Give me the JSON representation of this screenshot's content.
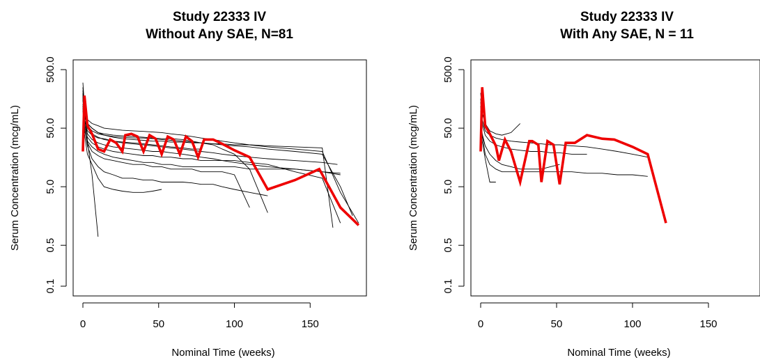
{
  "chart_data": [
    {
      "type": "line",
      "title_line1": "Study 22333 IV",
      "title_line2": "Without Any SAE, N=81",
      "xlabel": "Nominal Time (weeks)",
      "ylabel": "Serum Concentration (mcg/mL)",
      "xlim": [
        0,
        183
      ],
      "ylim": [
        0.1,
        500
      ],
      "yscale": "log",
      "x_ticks": [
        0,
        50,
        100,
        150
      ],
      "x_tick_labels": [
        "0",
        "50",
        "100",
        "150"
      ],
      "y_ticks": [
        0.1,
        0.5,
        5,
        50,
        500
      ],
      "y_tick_labels": [
        "0.1",
        "0.5",
        "5.0",
        "50.0",
        "500.0"
      ],
      "thin_color": "#000000",
      "highlight_color": "#ee0000",
      "series": [
        {
          "x": [
            0,
            1,
            3,
            6,
            10,
            14,
            20,
            26,
            33,
            40,
            46,
            52,
            58,
            66,
            72,
            78
          ],
          "y": [
            160,
            70,
            45,
            38,
            34,
            33,
            30,
            29,
            28,
            27,
            26,
            25,
            24,
            23,
            22,
            22
          ]
        },
        {
          "x": [
            0,
            1,
            3,
            6,
            10,
            14,
            20,
            26,
            33,
            40,
            46,
            52,
            58,
            66,
            72,
            78,
            86,
            92,
            100,
            110,
            122
          ],
          "y": [
            200,
            90,
            60,
            50,
            42,
            40,
            38,
            37,
            36,
            35,
            34,
            33,
            33,
            32,
            30,
            28,
            26,
            22,
            18,
            10,
            1.8
          ]
        },
        {
          "x": [
            0,
            1,
            3,
            6,
            10,
            14,
            20,
            26,
            33,
            40,
            46,
            52,
            58,
            66,
            72,
            78,
            86,
            92,
            100,
            110,
            122,
            140,
            158,
            170
          ],
          "y": [
            150,
            60,
            35,
            28,
            24,
            22,
            20,
            19,
            18,
            17,
            17,
            16,
            16,
            15,
            15,
            14,
            14,
            14,
            14,
            13,
            12,
            9,
            7,
            1.2
          ]
        },
        {
          "x": [
            0,
            1,
            3,
            6,
            10
          ],
          "y": [
            300,
            120,
            30,
            8,
            0.7
          ]
        },
        {
          "x": [
            0,
            1,
            3,
            6,
            10,
            14,
            20,
            26,
            33,
            40,
            46,
            52
          ],
          "y": [
            120,
            40,
            18,
            12,
            7,
            5,
            4.5,
            4.2,
            4,
            4,
            4.2,
            4.5
          ]
        },
        {
          "x": [
            0,
            1,
            3,
            6,
            10,
            14,
            20,
            26,
            33,
            40,
            46,
            52,
            58,
            66,
            72,
            78,
            86,
            92,
            100,
            110,
            122,
            140,
            158,
            170,
            178
          ],
          "y": [
            180,
            80,
            55,
            45,
            40,
            38,
            36,
            35,
            34,
            34,
            33,
            32,
            31,
            30,
            29,
            28,
            27,
            26,
            25,
            24,
            22,
            20,
            18,
            5,
            1.6
          ]
        },
        {
          "x": [
            0,
            1,
            3,
            6,
            10,
            14,
            20,
            26,
            33,
            40,
            46,
            52,
            58,
            66,
            72,
            78,
            86,
            92,
            100,
            110,
            122,
            140,
            158,
            170,
            182
          ],
          "y": [
            250,
            100,
            70,
            60,
            55,
            50,
            48,
            46,
            45,
            44,
            43,
            42,
            40,
            38,
            36,
            34,
            32,
            30,
            28,
            26,
            24,
            22,
            20,
            4,
            1.2
          ]
        },
        {
          "x": [
            0,
            1,
            3,
            6,
            10,
            14,
            20,
            26,
            33,
            40,
            46,
            52,
            58,
            66,
            72,
            78,
            86,
            92,
            100,
            110,
            122,
            140,
            158,
            170
          ],
          "y": [
            100,
            45,
            30,
            24,
            20,
            18,
            16,
            15,
            14,
            13,
            13,
            12,
            12,
            11,
            11,
            11,
            11,
            11,
            11,
            10,
            10,
            10,
            9,
            8
          ]
        },
        {
          "x": [
            0,
            1,
            3,
            6,
            10,
            14,
            20,
            26,
            33,
            40,
            46,
            52,
            58,
            66,
            72,
            78,
            86,
            92,
            100,
            110,
            122
          ],
          "y": [
            130,
            55,
            25,
            15,
            11,
            9,
            8,
            7,
            7,
            6.5,
            6.5,
            6,
            6,
            6,
            5.8,
            5.5,
            5.5,
            5,
            4.5,
            4,
            3.5
          ]
        },
        {
          "x": [
            0,
            1,
            3,
            6,
            10,
            14,
            20,
            26,
            33,
            40,
            46,
            52,
            58,
            66,
            72,
            78,
            86,
            92,
            100,
            110,
            122,
            140,
            158,
            165
          ],
          "y": [
            220,
            90,
            60,
            50,
            42,
            38,
            35,
            33,
            32,
            31,
            30,
            30,
            29,
            29,
            28,
            28,
            27,
            27,
            26,
            26,
            25,
            24,
            23,
            1.0
          ]
        },
        {
          "x": [
            0,
            1,
            3,
            6,
            10,
            14,
            20,
            26,
            33,
            40,
            46,
            52,
            58,
            66,
            72,
            78,
            86,
            92,
            100,
            110,
            122,
            140,
            158,
            170
          ],
          "y": [
            170,
            70,
            40,
            32,
            28,
            26,
            24,
            23,
            22,
            21,
            20,
            20,
            19,
            18,
            17,
            16,
            15,
            14,
            13,
            12,
            11,
            10,
            9,
            8.5
          ]
        },
        {
          "x": [
            0,
            1,
            3,
            6,
            10,
            14,
            20,
            26,
            33,
            40,
            46,
            52,
            58,
            66,
            72,
            78,
            86,
            92,
            100,
            110
          ],
          "y": [
            110,
            50,
            28,
            20,
            17,
            15,
            14,
            13,
            12,
            12,
            11,
            11,
            10,
            10,
            10,
            9,
            9,
            9,
            8,
            2.2
          ]
        },
        {
          "x": [
            0,
            1,
            3,
            6,
            10,
            14,
            20,
            26,
            33,
            40,
            46,
            52,
            58,
            66,
            72,
            78,
            86,
            92,
            100,
            110,
            122,
            140,
            158,
            168
          ],
          "y": [
            190,
            85,
            50,
            40,
            35,
            32,
            30,
            28,
            27,
            26,
            25,
            24,
            23,
            22,
            21,
            20,
            19,
            18,
            17,
            16,
            15,
            14,
            13,
            12
          ]
        }
      ],
      "highlight_series": {
        "x": [
          0,
          1,
          3,
          6,
          10,
          14,
          18,
          22,
          26,
          28,
          32,
          36,
          40,
          44,
          48,
          52,
          56,
          60,
          64,
          68,
          72,
          76,
          80,
          86,
          92,
          100,
          110,
          122,
          140,
          156,
          170,
          182
        ],
        "y": [
          20,
          180,
          55,
          40,
          22,
          20,
          32,
          28,
          20,
          38,
          40,
          36,
          20,
          38,
          33,
          18,
          36,
          32,
          18,
          36,
          30,
          16,
          32,
          32,
          27,
          21,
          16,
          4.5,
          6.5,
          10,
          2.2,
          1.1
        ]
      }
    },
    {
      "type": "line",
      "title_line1": "Study 22333 IV",
      "title_line2": "With Any SAE, N = 11",
      "xlabel": "Nominal Time (weeks)",
      "ylabel": "Serum Concentration (mcg/mL)",
      "xlim": [
        0,
        183
      ],
      "ylim": [
        0.1,
        500
      ],
      "yscale": "log",
      "x_ticks": [
        0,
        50,
        100,
        150
      ],
      "x_tick_labels": [
        "0",
        "50",
        "100",
        "150"
      ],
      "y_ticks": [
        0.1,
        0.5,
        5,
        50,
        500
      ],
      "y_tick_labels": [
        "0.1",
        "0.5",
        "5.0",
        "50.0",
        "500.0"
      ],
      "thin_color": "#000000",
      "highlight_color": "#ee0000",
      "series": [
        {
          "x": [
            0,
            1,
            3,
            6,
            10,
            14,
            20,
            26,
            33,
            40,
            46,
            52,
            60,
            70,
            80,
            90,
            100,
            110
          ],
          "y": [
            160,
            70,
            45,
            38,
            34,
            32,
            30,
            29,
            28,
            27,
            26,
            26,
            25,
            24,
            22,
            20,
            18,
            16
          ]
        },
        {
          "x": [
            0,
            1,
            3,
            6,
            10,
            14,
            20,
            26,
            33,
            40,
            46,
            52,
            60,
            70,
            80,
            90,
            100,
            110
          ],
          "y": [
            120,
            40,
            18,
            12,
            10,
            9,
            9,
            9,
            9,
            9,
            9,
            9,
            9,
            8.5,
            8.5,
            8,
            8,
            7.5
          ]
        },
        {
          "x": [
            0,
            1,
            3,
            6,
            10
          ],
          "y": [
            80,
            30,
            15,
            6,
            6
          ]
        },
        {
          "x": [
            0,
            1,
            3,
            6,
            10,
            14,
            20,
            26
          ],
          "y": [
            200,
            90,
            60,
            45,
            40,
            38,
            42,
            60
          ]
        },
        {
          "x": [
            0,
            1,
            3,
            6,
            10,
            14,
            20,
            26,
            33,
            40,
            46,
            52
          ],
          "y": [
            100,
            40,
            25,
            18,
            14,
            12,
            11,
            10,
            10,
            10,
            11,
            12
          ]
        },
        {
          "x": [
            0,
            1,
            3,
            6,
            10,
            14,
            20,
            26,
            33,
            40,
            46,
            52,
            60,
            70
          ],
          "y": [
            140,
            60,
            38,
            30,
            26,
            24,
            22,
            21,
            20,
            20,
            19,
            19,
            18,
            18
          ]
        }
      ],
      "highlight_series": {
        "x": [
          0,
          1,
          3,
          6,
          10,
          12,
          16,
          20,
          26,
          32,
          34,
          38,
          40,
          44,
          48,
          52,
          56,
          62,
          70,
          80,
          88,
          100,
          110,
          122
        ],
        "y": [
          20,
          250,
          55,
          40,
          25,
          14,
          32,
          20,
          6,
          30,
          30,
          26,
          6,
          30,
          26,
          5.5,
          28,
          28,
          38,
          33,
          32,
          24,
          18,
          1.2
        ]
      }
    }
  ]
}
